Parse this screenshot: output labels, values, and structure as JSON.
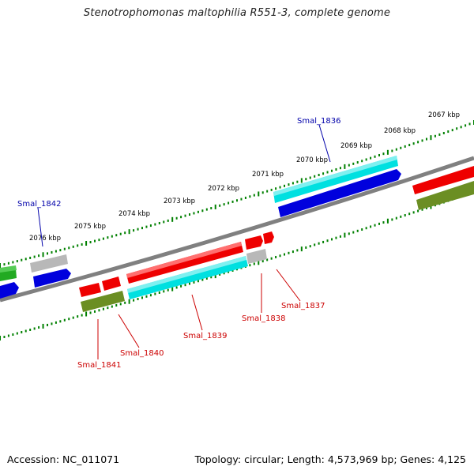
{
  "title": "Stenotrophomonas maltophilia R551-3, complete genome",
  "footer": {
    "accession": "Accession: NC_011071",
    "summary": "Topology: circular; Length: 4,573,969 bp; Genes: 4,125"
  },
  "ruler_labels": [
    "2076 kbp",
    "2075 kbp",
    "2074 kbp",
    "2073 kbp",
    "2072 kbp",
    "2071 kbp",
    "2070 kbp",
    "2069 kbp",
    "2068 kbp",
    "2067 kbp"
  ],
  "gene_labels": {
    "forward": [
      "Smal_1842",
      "Smal_1836"
    ],
    "reverse": [
      "Smal_1841",
      "Smal_1840",
      "Smal_1839",
      "Smal_1838",
      "Smal_1837"
    ]
  },
  "colors": {
    "backbone": "#808080",
    "tick": "#008000",
    "red": "#ee0000",
    "blue": "#0000dd",
    "cyan": "#00e0e0",
    "olive": "#6b8e23",
    "gray": "#b8b8b8",
    "green": "#22aa22",
    "forward_label": "#0000aa",
    "reverse_label": "#cc0000"
  }
}
